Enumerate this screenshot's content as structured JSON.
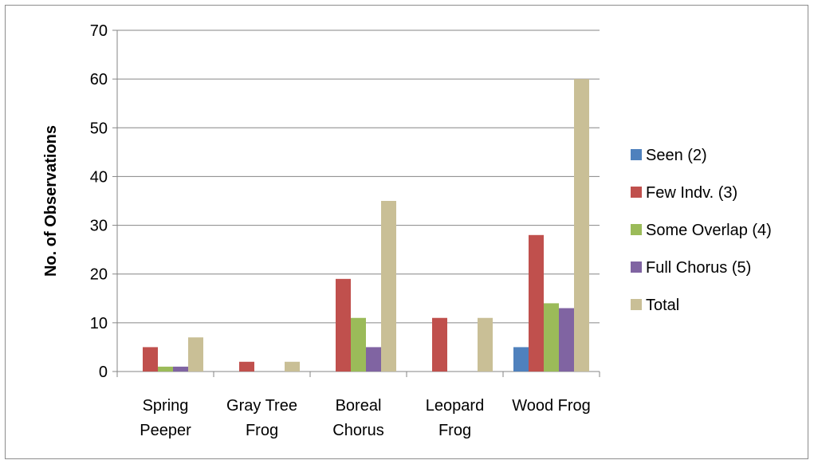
{
  "chart_data": {
    "type": "bar",
    "categories": [
      [
        "Spring",
        "Peeper"
      ],
      [
        "Gray Tree",
        "Frog"
      ],
      [
        "Boreal",
        "Chorus"
      ],
      [
        "Leopard",
        "Frog"
      ],
      [
        "Wood Frog"
      ]
    ],
    "series": [
      {
        "name": "Seen (2)",
        "color": "#4f81bd",
        "values": [
          0,
          0,
          0,
          0,
          5
        ]
      },
      {
        "name": "Few Indv. (3)",
        "color": "#c0504d",
        "values": [
          5,
          2,
          19,
          11,
          28
        ]
      },
      {
        "name": "Some Overlap (4)",
        "color": "#9bbb59",
        "values": [
          1,
          0,
          11,
          0,
          14
        ]
      },
      {
        "name": "Full Chorus (5)",
        "color": "#8064a2",
        "values": [
          1,
          0,
          5,
          0,
          13
        ]
      },
      {
        "name": "Total",
        "color": "#c9bf96",
        "values": [
          7,
          2,
          35,
          11,
          60
        ]
      }
    ],
    "ylabel": "No. of Observations",
    "xlabel": "",
    "ylim": [
      0,
      70
    ],
    "yticks": [
      0,
      10,
      20,
      30,
      40,
      50,
      60,
      70
    ],
    "grid": true,
    "legend_position": "right"
  }
}
